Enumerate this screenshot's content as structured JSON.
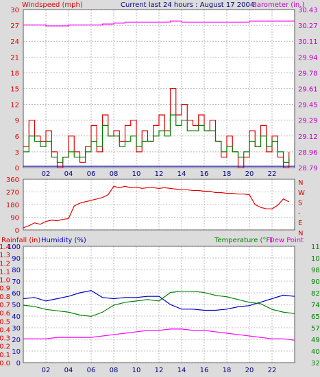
{
  "chart_data": [
    {
      "type": "line",
      "title": "Current last 24 hours : August 17 2004",
      "left_label": "Windspeed (mph)",
      "right_label": "Barometer (in.)",
      "x_ticks": [
        "02",
        "04",
        "06",
        "08",
        "10",
        "12",
        "14",
        "16",
        "18",
        "20",
        "22"
      ],
      "left_ticks": [
        "0",
        "3",
        "6",
        "9",
        "12",
        "15",
        "18",
        "21",
        "24",
        "27",
        "30"
      ],
      "right_ticks": [
        "28.79",
        "28.96",
        "29.12",
        "29.29",
        "29.45",
        "29.61",
        "29.78",
        "29.94",
        "30.11",
        "30.27",
        "30.43"
      ],
      "ylim": [
        0,
        30
      ],
      "y2lim": [
        28.79,
        30.43
      ],
      "xlim": [
        0,
        24
      ],
      "colors": {
        "gust": "#e00000",
        "average": "#008000",
        "barometer": "#ff00ff",
        "left_axis": "#e00000",
        "right_axis": "#c000c0",
        "title": "#000080"
      },
      "series": [
        {
          "name": "",
          "color": "#e00000",
          "x": [
            0,
            0.5,
            1,
            1.5,
            2,
            2.5,
            3,
            3.5,
            4,
            4.5,
            5,
            5.5,
            6,
            6.5,
            7,
            7.5,
            8,
            8.5,
            9,
            9.5,
            10,
            10.5,
            11,
            11.5,
            12,
            12.5,
            13,
            13.5,
            14,
            14.5,
            15,
            15.5,
            16,
            16.5,
            17,
            17.5,
            18,
            18.5,
            19,
            19.5,
            20,
            20.5,
            21,
            21.5,
            22,
            22.5,
            23,
            23.5
          ],
          "y": [
            4,
            9,
            6,
            5,
            7,
            3,
            0,
            2,
            6,
            3,
            1,
            4,
            8,
            3,
            10,
            6,
            7,
            5,
            8,
            9,
            3,
            7,
            5,
            8,
            10,
            7,
            15,
            10,
            12,
            9,
            8,
            10,
            7,
            9,
            5,
            2,
            6,
            3,
            0,
            2,
            7,
            4,
            8,
            3,
            6,
            2,
            0,
            3
          ]
        },
        {
          "name": "",
          "color": "#008000",
          "x": [
            0,
            0.5,
            1,
            1.5,
            2,
            2.5,
            3,
            3.5,
            4,
            4.5,
            5,
            5.5,
            6,
            6.5,
            7,
            7.5,
            8,
            8.5,
            9,
            9.5,
            10,
            10.5,
            11,
            11.5,
            12,
            12.5,
            13,
            13.5,
            14,
            14.5,
            15,
            15.5,
            16,
            16.5,
            17,
            17.5,
            18,
            18.5,
            19,
            19.5,
            20,
            20.5,
            21,
            21.5,
            22,
            22.5,
            23,
            23.5
          ],
          "y": [
            3,
            6,
            5,
            4,
            5,
            2,
            1,
            2,
            3,
            2,
            2,
            3,
            5,
            4,
            8,
            6,
            6,
            4,
            5,
            6,
            4,
            5,
            5,
            6,
            7,
            6,
            10,
            8,
            9,
            7,
            7,
            8,
            7,
            7,
            5,
            3,
            4,
            3,
            2,
            3,
            5,
            4,
            6,
            4,
            5,
            3,
            1,
            2
          ]
        },
        {
          "name": "",
          "color": "#ff00ff",
          "x": [
            0,
            1,
            2,
            3,
            4,
            5,
            6,
            7,
            8,
            9,
            10,
            11,
            12,
            13,
            14,
            15,
            16,
            17,
            18,
            19,
            20,
            21,
            22,
            23,
            24
          ],
          "y": [
            30.27,
            30.27,
            30.26,
            30.26,
            30.27,
            30.27,
            30.27,
            30.28,
            30.29,
            30.3,
            30.3,
            30.3,
            30.3,
            30.31,
            30.3,
            30.3,
            30.3,
            30.3,
            30.3,
            30.3,
            30.31,
            30.31,
            30.31,
            30.31,
            30.31
          ]
        }
      ]
    },
    {
      "type": "line",
      "left_ticks": [
        "0",
        "90",
        "180",
        "270",
        "360"
      ],
      "right_ticks": [
        "N",
        "W",
        "S",
        "-",
        "E",
        "N"
      ],
      "ylim": [
        0,
        360
      ],
      "xlim": [
        0,
        24
      ],
      "series": [
        {
          "name": "",
          "color": "#e00000",
          "x": [
            0,
            0.5,
            1,
            1.5,
            2,
            2.5,
            3,
            3.5,
            4,
            4.5,
            5,
            5.5,
            6,
            6.5,
            7,
            7.5,
            8,
            8.5,
            9,
            9.5,
            10,
            10.5,
            11,
            11.5,
            12,
            12.5,
            13,
            13.5,
            14,
            14.5,
            15,
            15.5,
            16,
            16.5,
            17,
            17.5,
            18,
            18.5,
            19,
            19.5,
            20,
            20.5,
            21,
            21.5,
            22,
            22.5,
            23,
            23.5
          ],
          "y": [
            15,
            30,
            50,
            40,
            60,
            70,
            65,
            75,
            80,
            170,
            190,
            200,
            210,
            220,
            230,
            250,
            310,
            300,
            310,
            300,
            305,
            295,
            300,
            300,
            295,
            300,
            295,
            290,
            285,
            285,
            280,
            280,
            275,
            275,
            265,
            265,
            260,
            260,
            255,
            255,
            250,
            180,
            160,
            150,
            150,
            175,
            220,
            200
          ]
        }
      ]
    },
    {
      "type": "line",
      "left_label_1": "Rainfall (in)",
      "left_label_2": "Humidity (%)",
      "right_label_1": "Temperature (°F)",
      "right_label_2": "Dew Point",
      "rain_ticks": [
        "0.0",
        "0.1",
        "0.2",
        "0.3",
        "0.4",
        "0.5",
        "0.6",
        "0.7",
        "0.8",
        "0.9",
        "1.0",
        "1.1",
        "1.2",
        "1.3",
        "1.4"
      ],
      "humidity_ticks": [
        "0",
        "10",
        "20",
        "30",
        "40",
        "50",
        "60",
        "70",
        "80",
        "90",
        "100"
      ],
      "temp_ticks": [
        "32",
        "40",
        "49",
        "57",
        "65",
        "74",
        "82",
        "90",
        "98",
        "107",
        "115"
      ],
      "xlim": [
        0,
        24
      ],
      "series": [
        {
          "name": "",
          "color": "#0000c0",
          "x": [
            0,
            1,
            2,
            3,
            4,
            5,
            6,
            7,
            8,
            9,
            10,
            11,
            12,
            13,
            14,
            15,
            16,
            17,
            18,
            19,
            20,
            21,
            22,
            23,
            24
          ],
          "y": [
            55,
            56,
            53,
            55,
            57,
            60,
            62,
            56,
            55,
            56,
            56,
            57,
            57,
            50,
            46,
            46,
            45,
            45,
            46,
            48,
            49,
            52,
            55,
            58,
            57
          ]
        },
        {
          "name": "",
          "color": "#008000",
          "x": [
            0,
            1,
            2,
            3,
            4,
            5,
            6,
            7,
            8,
            9,
            10,
            11,
            12,
            13,
            14,
            15,
            16,
            17,
            18,
            19,
            20,
            21,
            22,
            23,
            24
          ],
          "y": [
            73,
            72,
            70,
            69,
            68,
            66,
            65,
            68,
            73,
            75,
            76,
            77,
            76,
            82,
            83,
            83,
            82,
            80,
            79,
            77,
            75,
            74,
            70,
            68,
            67
          ]
        },
        {
          "name": "",
          "color": "#ff00ff",
          "x": [
            0,
            1,
            2,
            3,
            4,
            5,
            6,
            7,
            8,
            9,
            10,
            11,
            12,
            13,
            14,
            15,
            16,
            17,
            18,
            19,
            20,
            21,
            22,
            23,
            24
          ],
          "y": [
            49,
            49,
            49,
            50,
            50,
            50,
            50,
            51,
            52,
            53,
            54,
            55,
            55,
            56,
            56,
            55,
            55,
            54,
            53,
            52,
            51,
            50,
            49,
            49,
            48
          ]
        }
      ]
    }
  ]
}
